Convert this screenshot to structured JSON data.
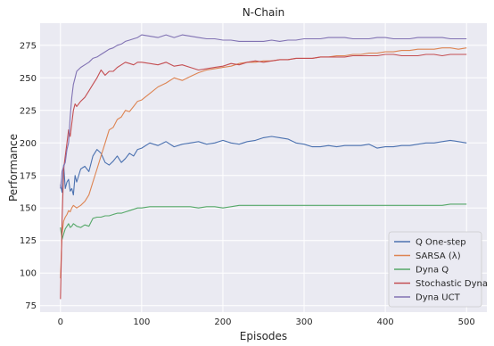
{
  "chart_data": {
    "type": "line",
    "title": "N-Chain",
    "xlabel": "Episodes",
    "ylabel": "Performance",
    "xlim": [
      -25,
      525
    ],
    "ylim": [
      70,
      292
    ],
    "xticks": [
      0,
      100,
      200,
      300,
      400,
      500
    ],
    "yticks": [
      75,
      100,
      125,
      150,
      175,
      200,
      225,
      250,
      275
    ],
    "grid": true,
    "legend_position": "bottom-right",
    "series": [
      {
        "name": "Q One-step",
        "color": "#4c72b0",
        "x": [
          0,
          2,
          4,
          6,
          8,
          10,
          12,
          14,
          16,
          18,
          20,
          25,
          30,
          35,
          40,
          45,
          50,
          55,
          60,
          65,
          70,
          75,
          80,
          85,
          90,
          95,
          100,
          110,
          120,
          130,
          140,
          150,
          160,
          170,
          180,
          190,
          200,
          210,
          220,
          230,
          240,
          250,
          260,
          270,
          280,
          290,
          300,
          310,
          320,
          330,
          340,
          350,
          360,
          370,
          380,
          390,
          400,
          410,
          420,
          430,
          440,
          450,
          460,
          470,
          480,
          490,
          500
        ],
        "y": [
          168,
          162,
          183,
          165,
          170,
          172,
          163,
          165,
          160,
          175,
          170,
          180,
          182,
          178,
          190,
          195,
          192,
          185,
          183,
          186,
          190,
          185,
          188,
          192,
          190,
          195,
          196,
          200,
          198,
          201,
          197,
          199,
          200,
          201,
          199,
          200,
          202,
          200,
          199,
          201,
          202,
          204,
          205,
          204,
          203,
          200,
          199,
          197,
          197,
          198,
          197,
          198,
          198,
          198,
          199,
          196,
          197,
          197,
          198,
          198,
          199,
          200,
          200,
          201,
          202,
          201,
          200
        ]
      },
      {
        "name": "SARSA (λ)",
        "color": "#dd8452",
        "x": [
          0,
          2,
          4,
          6,
          8,
          10,
          12,
          14,
          16,
          18,
          20,
          25,
          30,
          35,
          40,
          45,
          50,
          55,
          60,
          65,
          70,
          75,
          80,
          85,
          90,
          95,
          100,
          110,
          120,
          130,
          140,
          150,
          160,
          170,
          180,
          190,
          200,
          210,
          220,
          230,
          240,
          250,
          260,
          270,
          280,
          290,
          300,
          310,
          320,
          330,
          340,
          350,
          360,
          370,
          380,
          390,
          400,
          410,
          420,
          430,
          440,
          450,
          460,
          470,
          480,
          490,
          500
        ],
        "y": [
          96,
          130,
          140,
          143,
          145,
          148,
          147,
          150,
          152,
          151,
          150,
          152,
          155,
          160,
          170,
          180,
          190,
          200,
          210,
          212,
          218,
          220,
          225,
          224,
          228,
          232,
          233,
          238,
          243,
          246,
          250,
          248,
          251,
          254,
          256,
          257,
          258,
          259,
          261,
          262,
          262,
          263,
          263,
          264,
          264,
          265,
          265,
          265,
          266,
          266,
          267,
          267,
          268,
          268,
          269,
          269,
          270,
          270,
          271,
          271,
          272,
          272,
          272,
          273,
          273,
          272,
          273
        ]
      },
      {
        "name": "Dyna Q",
        "color": "#55a868",
        "x": [
          0,
          2,
          4,
          6,
          8,
          10,
          12,
          14,
          16,
          18,
          20,
          25,
          30,
          35,
          40,
          45,
          50,
          55,
          60,
          65,
          70,
          75,
          80,
          85,
          90,
          95,
          100,
          110,
          120,
          130,
          140,
          150,
          160,
          170,
          180,
          190,
          200,
          210,
          220,
          230,
          240,
          250,
          260,
          270,
          280,
          290,
          300,
          310,
          320,
          330,
          340,
          350,
          360,
          370,
          380,
          390,
          400,
          410,
          420,
          430,
          440,
          450,
          460,
          470,
          480,
          490,
          500
        ],
        "y": [
          135,
          126,
          130,
          134,
          136,
          138,
          135,
          136,
          138,
          137,
          136,
          135,
          137,
          136,
          142,
          143,
          143,
          144,
          144,
          145,
          146,
          146,
          147,
          148,
          149,
          150,
          150,
          151,
          151,
          151,
          151,
          151,
          151,
          150,
          151,
          151,
          150,
          151,
          152,
          152,
          152,
          152,
          152,
          152,
          152,
          152,
          152,
          152,
          152,
          152,
          152,
          152,
          152,
          152,
          152,
          152,
          152,
          152,
          152,
          152,
          152,
          152,
          152,
          152,
          153,
          153,
          153
        ]
      },
      {
        "name": "Stochastic Dyna",
        "color": "#c44e52",
        "x": [
          0,
          2,
          4,
          6,
          8,
          10,
          12,
          14,
          16,
          18,
          20,
          25,
          30,
          35,
          40,
          45,
          50,
          55,
          60,
          65,
          70,
          75,
          80,
          85,
          90,
          95,
          100,
          110,
          120,
          130,
          140,
          150,
          160,
          170,
          180,
          190,
          200,
          210,
          220,
          230,
          240,
          250,
          260,
          270,
          280,
          290,
          300,
          310,
          320,
          330,
          340,
          350,
          360,
          370,
          380,
          390,
          400,
          410,
          420,
          430,
          440,
          450,
          460,
          470,
          480,
          490,
          500
        ],
        "y": [
          80,
          140,
          180,
          190,
          200,
          210,
          205,
          215,
          225,
          230,
          228,
          232,
          235,
          240,
          245,
          250,
          256,
          252,
          255,
          255,
          258,
          260,
          262,
          261,
          260,
          262,
          262,
          261,
          260,
          262,
          259,
          260,
          258,
          256,
          257,
          258,
          259,
          261,
          260,
          262,
          263,
          262,
          263,
          264,
          264,
          265,
          265,
          265,
          266,
          266,
          266,
          266,
          267,
          267,
          267,
          267,
          268,
          268,
          267,
          267,
          267,
          268,
          268,
          267,
          268,
          268,
          268
        ]
      },
      {
        "name": "Dyna UCT",
        "color": "#8172b3",
        "x": [
          0,
          2,
          4,
          6,
          8,
          10,
          12,
          14,
          16,
          18,
          20,
          25,
          30,
          35,
          40,
          45,
          50,
          55,
          60,
          65,
          70,
          75,
          80,
          85,
          90,
          95,
          100,
          110,
          120,
          130,
          140,
          150,
          160,
          170,
          180,
          190,
          200,
          210,
          220,
          230,
          240,
          250,
          260,
          270,
          280,
          290,
          300,
          310,
          320,
          330,
          340,
          350,
          360,
          370,
          380,
          390,
          400,
          410,
          420,
          430,
          440,
          450,
          460,
          470,
          480,
          490,
          500
        ],
        "y": [
          165,
          178,
          182,
          185,
          195,
          200,
          220,
          235,
          245,
          250,
          255,
          258,
          260,
          262,
          265,
          266,
          268,
          270,
          272,
          273,
          275,
          276,
          278,
          279,
          280,
          281,
          283,
          282,
          281,
          283,
          281,
          283,
          282,
          281,
          280,
          280,
          279,
          279,
          278,
          278,
          278,
          278,
          279,
          278,
          279,
          279,
          280,
          280,
          280,
          281,
          281,
          281,
          280,
          280,
          280,
          281,
          281,
          280,
          280,
          280,
          281,
          281,
          281,
          281,
          280,
          280,
          280
        ]
      }
    ]
  }
}
